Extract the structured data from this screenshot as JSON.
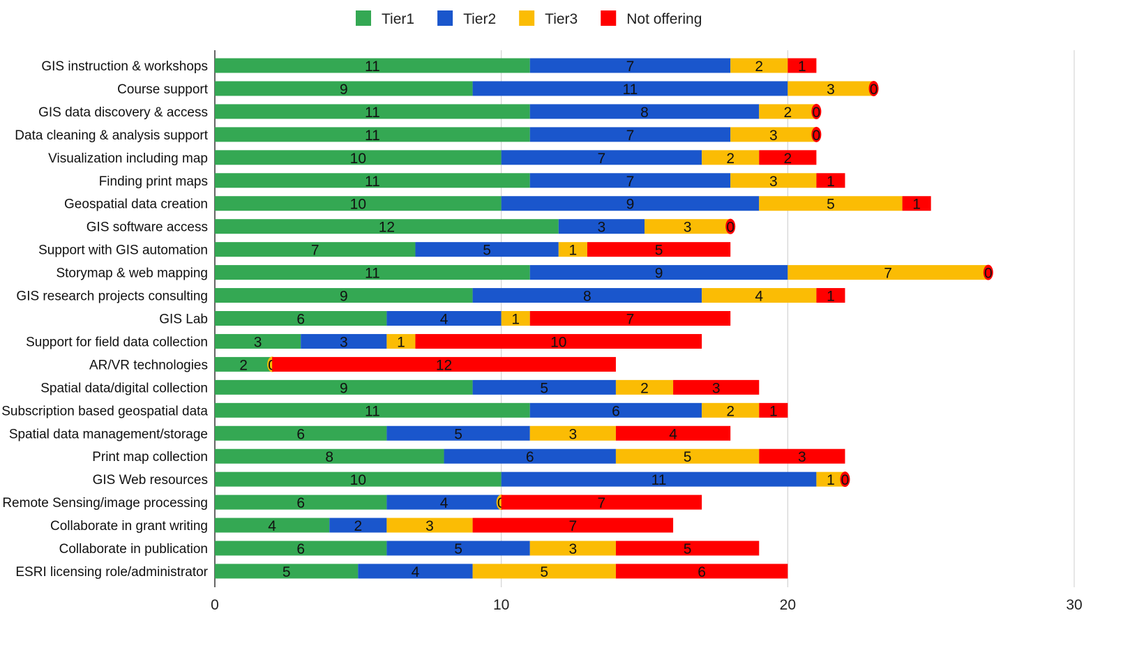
{
  "chart_data": {
    "type": "bar",
    "orientation": "horizontal",
    "stacked": true,
    "title": "",
    "xlabel": "",
    "ylabel": "",
    "xlim": [
      0,
      30
    ],
    "xticks": [
      0,
      10,
      20,
      30
    ],
    "grid": true,
    "legend_position": "top",
    "categories": [
      "GIS instruction & workshops",
      "Course support",
      "GIS data discovery & access",
      "Data cleaning & analysis support",
      "Visualization including map",
      "Finding print maps",
      "Geospatial data creation",
      "GIS software access",
      "Support with GIS automation",
      "Storymap & web mapping",
      "GIS research projects consulting",
      "GIS Lab",
      "Support for field data collection",
      "AR/VR technologies",
      "Spatial data/digital collection",
      "Subscription based geospatial data",
      "Spatial data management/storage",
      "Print map collection",
      "GIS Web resources",
      "Remote Sensing/image processing",
      "Collaborate in grant writing",
      "Collaborate in publication",
      "ESRI licensing role/administrator"
    ],
    "series": [
      {
        "name": "Tier1",
        "color": "#34a853",
        "values": [
          11,
          9,
          11,
          11,
          10,
          11,
          10,
          12,
          7,
          11,
          9,
          6,
          3,
          2,
          9,
          11,
          6,
          8,
          10,
          6,
          4,
          6,
          5
        ]
      },
      {
        "name": "Tier2",
        "color": "#1a56cc",
        "values": [
          7,
          11,
          8,
          7,
          7,
          7,
          9,
          3,
          5,
          9,
          8,
          4,
          3,
          null,
          5,
          6,
          5,
          6,
          11,
          4,
          2,
          5,
          4
        ]
      },
      {
        "name": "Tier3",
        "color": "#fbbc04",
        "values": [
          2,
          3,
          2,
          3,
          2,
          3,
          5,
          3,
          1,
          7,
          4,
          1,
          1,
          0,
          2,
          2,
          3,
          5,
          1,
          0,
          3,
          3,
          5
        ]
      },
      {
        "name": "Not offering",
        "color": "#ff0000",
        "values": [
          1,
          0,
          0,
          0,
          2,
          1,
          1,
          0,
          5,
          0,
          1,
          7,
          10,
          12,
          3,
          1,
          4,
          3,
          0,
          7,
          7,
          5,
          6
        ]
      }
    ]
  }
}
